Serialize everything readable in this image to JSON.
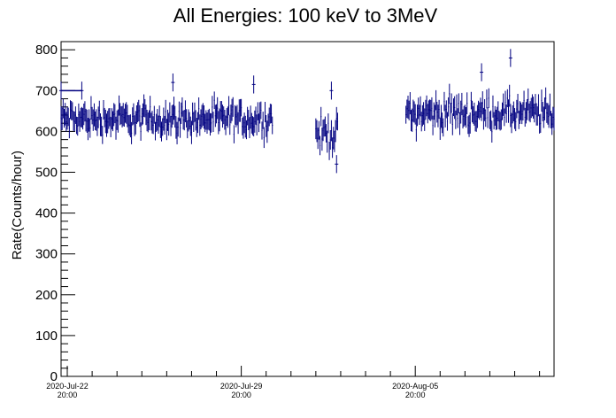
{
  "chart_data": {
    "type": "scatter",
    "title": "All Energies:  100 keV to 3MeV",
    "xlabel": "",
    "ylabel": "Rate(Counts/hour)",
    "ylim": [
      0,
      820
    ],
    "xlim": [
      "2020-07-22 14:00",
      "2020-08-11 10:00"
    ],
    "yticks": [
      0,
      100,
      200,
      300,
      400,
      500,
      600,
      700,
      800
    ],
    "xticks": [
      {
        "value": "2020-07-22 20:00",
        "line1": "2020-Jul-22",
        "line2": "20:00"
      },
      {
        "value": "2020-07-29 20:00",
        "line1": "2020-Jul-29",
        "line2": "20:00"
      },
      {
        "value": "2020-08-05 20:00",
        "line1": "2020-Aug-05",
        "line2": "20:00"
      }
    ],
    "grid": false,
    "series": [
      {
        "color": "#000080",
        "segments": [
          {
            "start": "2020-07-22 14:00",
            "end": "2020-07-31 02:00",
            "mean": 630,
            "spread": 28,
            "error": 25
          },
          {
            "start": "2020-08-01 20:00",
            "end": "2020-08-02 17:00",
            "mean": 595,
            "spread": 30,
            "error": 25
          },
          {
            "start": "2020-08-05 11:00",
            "end": "2020-08-11 10:00",
            "mean": 645,
            "spread": 30,
            "error": 25
          }
        ],
        "notable_points": [
          {
            "x": "2020-07-22 14:00",
            "y": 700
          },
          {
            "x": "2020-07-23 10:00",
            "y": 700
          },
          {
            "x": "2020-07-27 02:00",
            "y": 720
          },
          {
            "x": "2020-07-30 08:00",
            "y": 715
          },
          {
            "x": "2020-08-02 11:00",
            "y": 700
          },
          {
            "x": "2020-08-02 16:00",
            "y": 520
          },
          {
            "x": "2020-08-09 16:00",
            "y": 780
          },
          {
            "x": "2020-08-08 12:00",
            "y": 745
          }
        ]
      }
    ]
  }
}
